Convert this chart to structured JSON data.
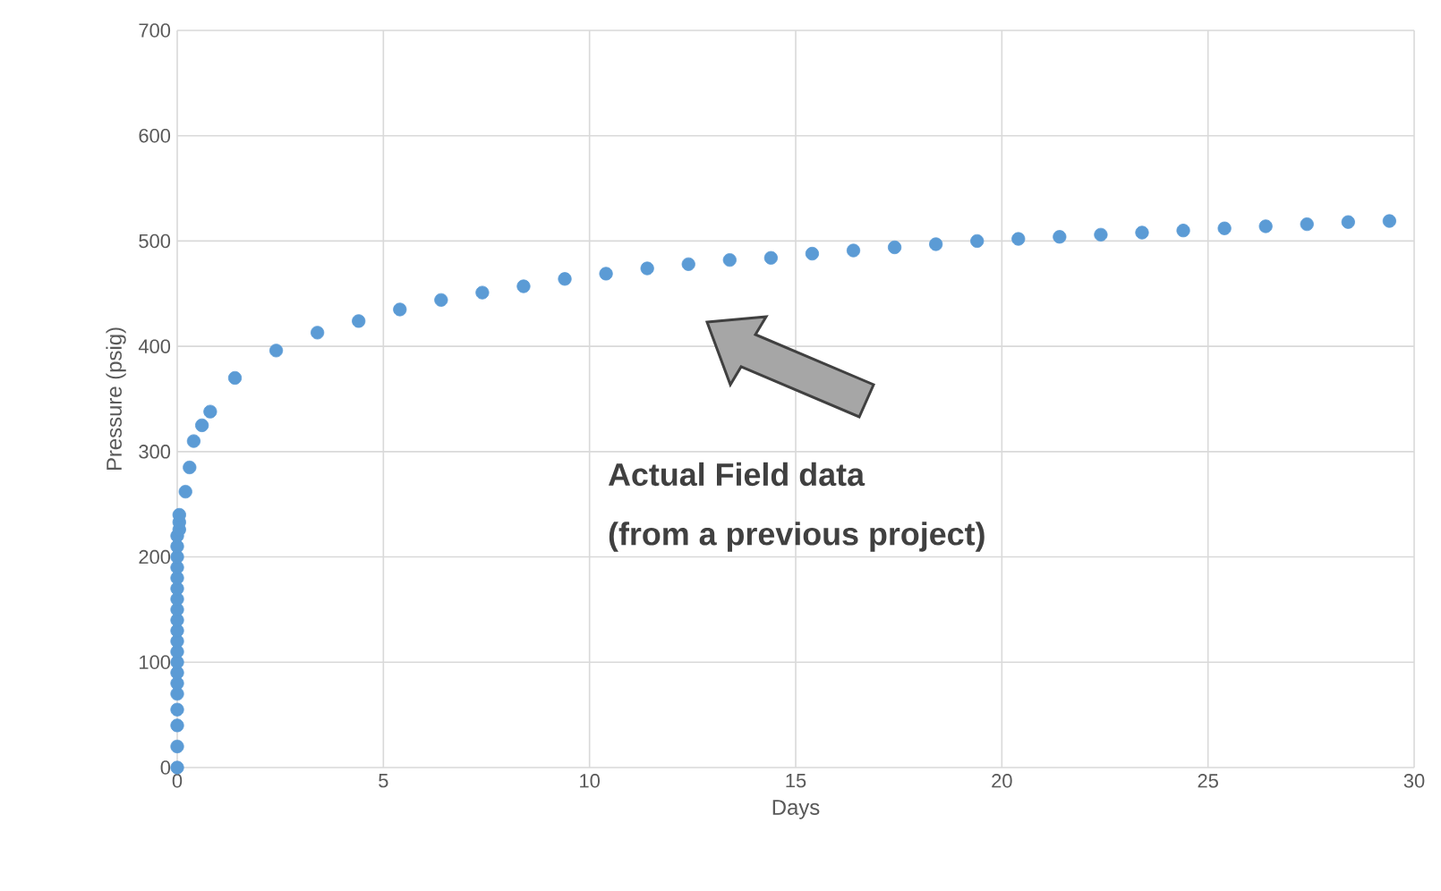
{
  "chart_data": {
    "type": "scatter",
    "xlabel": "Days",
    "ylabel": "Pressure (psig)",
    "annotations": [
      "Actual Field data",
      "(from a previous project)"
    ],
    "xlim": [
      0,
      30
    ],
    "xticks": [
      0,
      5,
      10,
      15,
      20,
      25,
      30
    ],
    "ylim": [
      0,
      700
    ],
    "yticks": [
      0,
      100,
      200,
      300,
      400,
      500,
      600,
      700
    ],
    "grid": true,
    "marker": "circle",
    "color": "#5b9bd5",
    "x": [
      0,
      0,
      0,
      0,
      0,
      0,
      0,
      0,
      0,
      0,
      0,
      0,
      0,
      0,
      0,
      0,
      0,
      0,
      0,
      0,
      0.05,
      0.05,
      0.05,
      0.2,
      0.3,
      0.4,
      0.6,
      0.8,
      1.4,
      2.4,
      3.4,
      4.4,
      5.4,
      6.4,
      7.4,
      8.4,
      9.4,
      10.4,
      11.4,
      12.4,
      13.4,
      14.4,
      15.4,
      16.4,
      17.4,
      18.4,
      19.4,
      20.4,
      21.4,
      22.4,
      23.4,
      24.4,
      25.4,
      26.4,
      27.4,
      28.4,
      29.4
    ],
    "values": [
      0,
      20,
      40,
      55,
      70,
      80,
      90,
      100,
      110,
      120,
      130,
      140,
      150,
      160,
      170,
      180,
      190,
      200,
      210,
      220,
      226,
      233,
      240,
      262,
      285,
      310,
      325,
      338,
      370,
      396,
      413,
      424,
      435,
      444,
      451,
      457,
      464,
      469,
      474,
      478,
      482,
      484,
      488,
      491,
      494,
      497,
      500,
      502,
      504,
      506,
      508,
      510,
      512,
      514,
      516,
      518,
      519
    ]
  }
}
